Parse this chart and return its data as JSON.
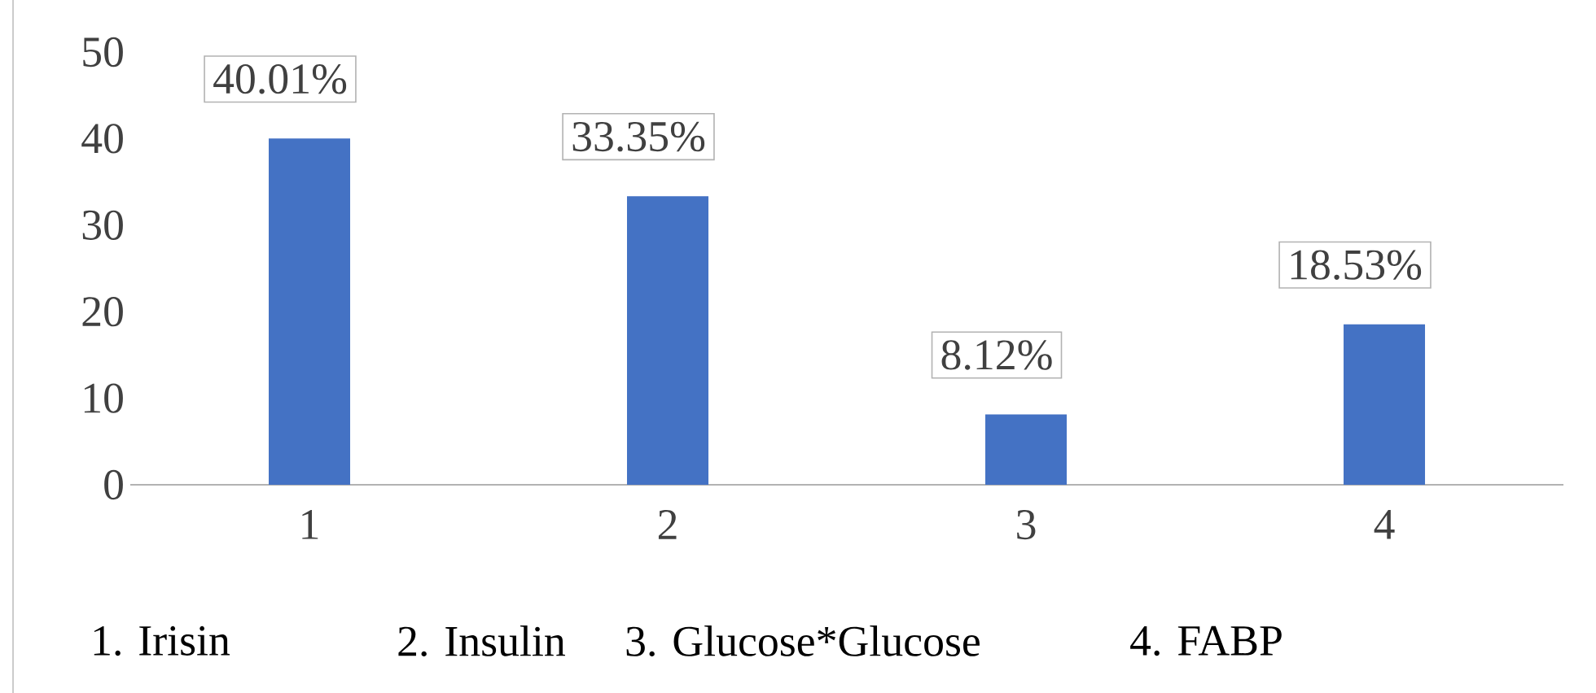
{
  "chart_data": {
    "type": "bar",
    "categories": [
      "1",
      "2",
      "3",
      "4"
    ],
    "values": [
      40.01,
      33.35,
      8.12,
      18.53
    ],
    "value_labels": [
      "40.01%",
      "33.35%",
      "8.12%",
      "18.53%"
    ],
    "color": "#4472c4",
    "ylim": [
      0,
      50
    ],
    "yticks": [
      0,
      10,
      20,
      30,
      40,
      50
    ],
    "annotations": [
      "1. Irisin",
      "2. Insulin",
      "3. Glucose*Glucose",
      "4. FABP"
    ]
  }
}
